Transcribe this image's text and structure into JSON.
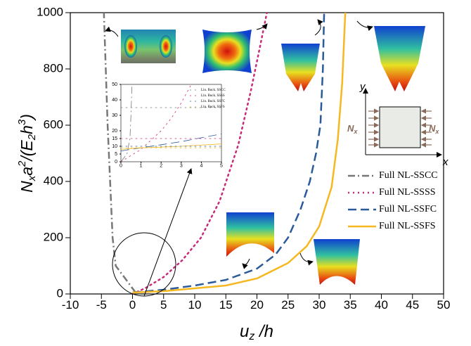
{
  "chart_data": [
    {
      "type": "line",
      "xlabel": [
        "u",
        "z",
        " /h"
      ],
      "ylabel": [
        "N",
        "x",
        "a",
        "2",
        "/(E",
        "2",
        "h",
        "3",
        ")"
      ],
      "annotations": [
        "y",
        "x",
        "N",
        "x",
        "N",
        "x"
      ],
      "xlim": [
        -10,
        50
      ],
      "xticks": [
        -10,
        -5,
        0,
        5,
        10,
        15,
        20,
        25,
        30,
        35,
        40,
        45,
        50
      ],
      "ylim": [
        0,
        1000
      ],
      "yticks": [
        0,
        200,
        400,
        600,
        800,
        1000
      ],
      "series": [
        {
          "name": "Full NL-SSCC",
          "color": "#777777",
          "dash": "dashdot",
          "x": [
            0.5,
            -1,
            -2.7,
            -3.2,
            -3.6,
            -4,
            -4.3,
            -4.6
          ],
          "values": [
            5,
            50,
            100,
            200,
            400,
            600,
            800,
            1000
          ]
        },
        {
          "name": "Full NL-SSSS",
          "color": "#c8297a",
          "dash": "dot",
          "x": [
            0,
            2,
            5,
            8,
            11,
            14,
            17,
            19,
            20.5,
            21.6
          ],
          "values": [
            0,
            20,
            60,
            120,
            200,
            330,
            530,
            720,
            880,
            1000
          ]
        },
        {
          "name": "Full NL-SSFC",
          "color": "#2a5a9a",
          "dash": "dash",
          "x": [
            0,
            5,
            10,
            15,
            20,
            23,
            25,
            27,
            28.5,
            29.5,
            30.2,
            30.6,
            30.8
          ],
          "values": [
            5,
            15,
            30,
            50,
            90,
            140,
            200,
            300,
            400,
            500,
            600,
            800,
            1000
          ]
        },
        {
          "name": "Full NL-SSFS",
          "color": "#f5b820",
          "dash": "solid",
          "x": [
            0,
            5,
            10,
            15,
            20,
            25,
            28,
            30,
            32,
            33,
            33.7,
            34.2
          ],
          "values": [
            5,
            10,
            20,
            30,
            55,
            110,
            170,
            240,
            380,
            550,
            750,
            1000
          ]
        }
      ]
    },
    {
      "type": "line",
      "xlim": [
        0,
        5
      ],
      "xticks": [
        0,
        1,
        2,
        3,
        4,
        5
      ],
      "ylim": [
        0,
        50
      ],
      "yticks": [
        0,
        5,
        10,
        15,
        20,
        30,
        40,
        50
      ],
      "series": [
        {
          "color": "#777777",
          "dash": "dashdot",
          "x": [
            0,
            0.3,
            0.45,
            0.5,
            0.55
          ],
          "values": [
            0,
            5,
            15,
            30,
            50
          ]
        },
        {
          "color": "#c8297a",
          "dash": "dot",
          "x": [
            0,
            1,
            2,
            2.5,
            3,
            3.5
          ],
          "values": [
            0,
            8,
            20,
            28,
            38,
            50
          ]
        },
        {
          "color": "#2a5a9a",
          "dash": "dash",
          "x": [
            0,
            1,
            2,
            3,
            4,
            5
          ],
          "values": [
            7,
            9,
            11,
            13,
            15.5,
            18
          ]
        },
        {
          "color": "#f5b820",
          "dash": "solid",
          "x": [
            0,
            1,
            2,
            3,
            4,
            5
          ],
          "values": [
            8,
            9,
            9.5,
            10,
            10.8,
            11.5
          ]
        },
        {
          "name": "Lin. Buck. SSCC",
          "color": "#777777",
          "dash": "dot",
          "x": [
            0,
            5
          ],
          "values": [
            35,
            35
          ]
        },
        {
          "name": "Lin. Buck. SSSS",
          "color": "#c8297a",
          "dash": "dot",
          "x": [
            0,
            5
          ],
          "values": [
            15,
            15
          ]
        },
        {
          "name": "Lin. Buck. SSFC",
          "color": "#2a5a9a",
          "dash": "dot",
          "x": [
            0,
            5
          ],
          "values": [
            10,
            10
          ]
        },
        {
          "name": "Lin. Buck. SSFS",
          "color": "#f5b820",
          "dash": "dot",
          "x": [
            0,
            5
          ],
          "values": [
            9,
            9
          ]
        }
      ]
    }
  ]
}
